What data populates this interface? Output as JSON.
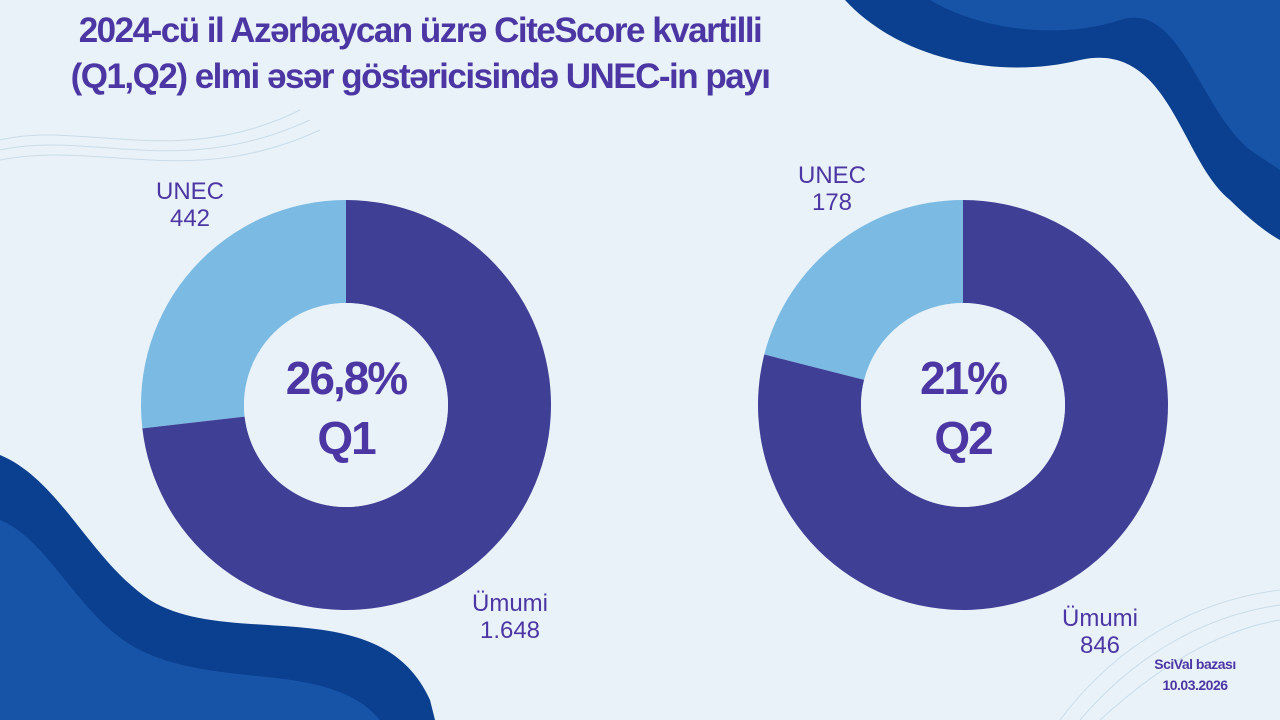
{
  "title": {
    "line1": "2024-cü il  Azərbaycan üzrə CiteScore kvartilli",
    "line2": "(Q1,Q2) elmi əsər göstəricisində UNEC-in payı"
  },
  "colors": {
    "unec": "#7bbbe3",
    "total": "#403f96",
    "text": "#4b36a3",
    "background": "#e9f2f8",
    "decoration": "#0b3f8f"
  },
  "chart_data": [
    {
      "type": "pie",
      "donut": true,
      "center_value": "26,8%",
      "center_label": "Q1",
      "slices": [
        {
          "label": "UNEC",
          "value_text": "442",
          "value": 442
        },
        {
          "label": "Ümumi",
          "value_text": "1.648",
          "value": 1648
        }
      ],
      "note": "UNEC share of total"
    },
    {
      "type": "pie",
      "donut": true,
      "center_value": "21%",
      "center_label": "Q2",
      "slices": [
        {
          "label": "UNEC",
          "value_text": "178",
          "value": 178
        },
        {
          "label": "Ümumi",
          "value_text": "846",
          "value": 846
        }
      ]
    }
  ],
  "source": {
    "line1": "SciVal bazası",
    "line2": "10.03.2026"
  }
}
